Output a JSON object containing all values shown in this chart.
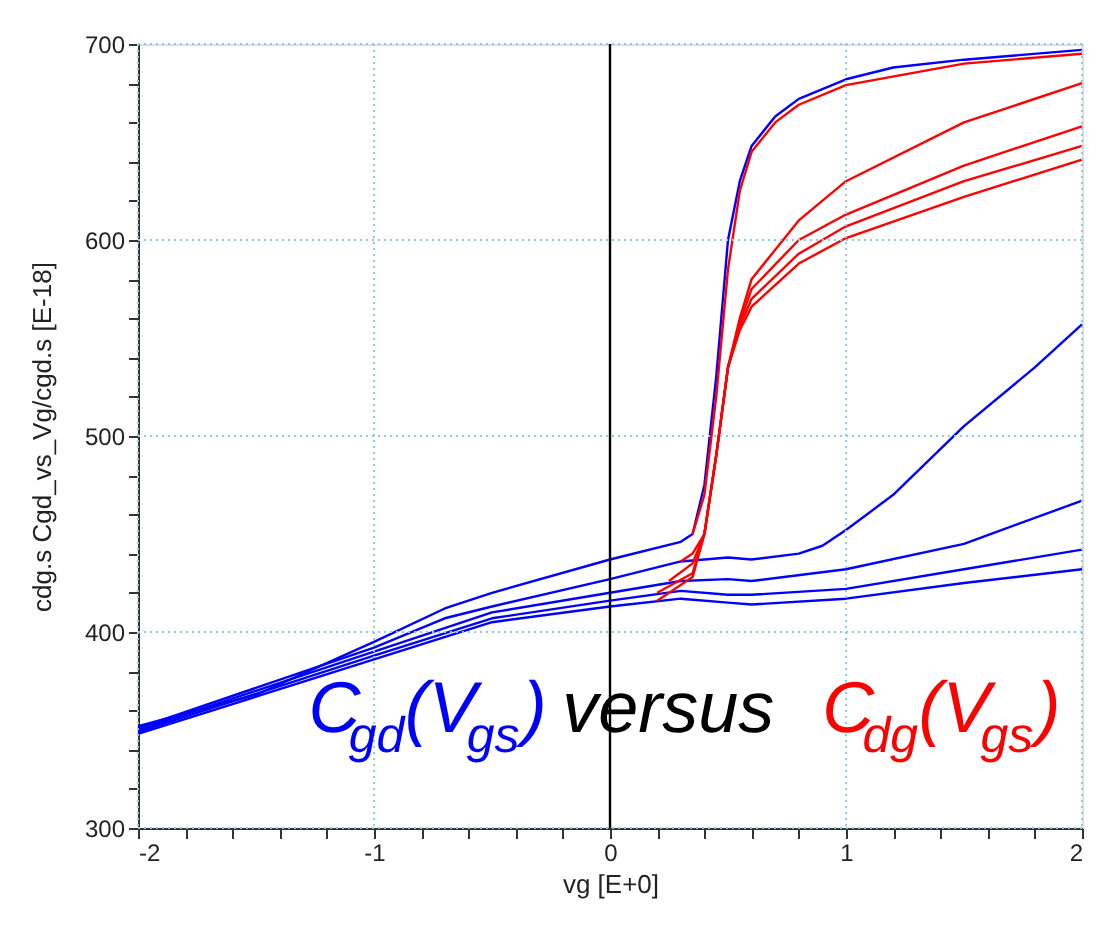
{
  "chart_data": {
    "type": "line",
    "xlabel": "vg  [E+0]",
    "ylabel": "cdg.s   Cgd_vs_Vg/cgd.s   [E-18]",
    "xlim": [
      -2,
      2
    ],
    "ylim": [
      300,
      700
    ],
    "xticks": [
      -2,
      {
        "value": -1.8,
        "label": null
      },
      {
        "value": -1.6,
        "label": null
      },
      {
        "value": -1.4,
        "label": null
      },
      {
        "value": -1.2,
        "label": null
      },
      -1,
      {
        "value": -0.8,
        "label": null
      },
      {
        "value": -0.6,
        "label": null
      },
      {
        "value": -0.4,
        "label": null
      },
      {
        "value": -0.2,
        "label": null
      },
      0,
      {
        "value": 0.2,
        "label": null
      },
      {
        "value": 0.4,
        "label": null
      },
      {
        "value": 0.6,
        "label": null
      },
      {
        "value": 0.8,
        "label": null
      },
      1,
      {
        "value": 1.2,
        "label": null
      },
      {
        "value": 1.4,
        "label": null
      },
      {
        "value": 1.6,
        "label": null
      },
      {
        "value": 1.8,
        "label": null
      },
      2
    ],
    "yticks": [
      300,
      {
        "value": 320,
        "label": null
      },
      {
        "value": 340,
        "label": null
      },
      {
        "value": 360,
        "label": null
      },
      {
        "value": 380,
        "label": null
      },
      400,
      {
        "value": 420,
        "label": null
      },
      {
        "value": 440,
        "label": null
      },
      {
        "value": 460,
        "label": null
      },
      {
        "value": 480,
        "label": null
      },
      500,
      {
        "value": 520,
        "label": null
      },
      {
        "value": 540,
        "label": null
      },
      {
        "value": 560,
        "label": null
      },
      {
        "value": 580,
        "label": null
      },
      600,
      {
        "value": 620,
        "label": null
      },
      {
        "value": 640,
        "label": null
      },
      {
        "value": 660,
        "label": null
      },
      {
        "value": 680,
        "label": null
      },
      700
    ],
    "grid": true,
    "legend": false,
    "line_style": "solid",
    "marker": "none",
    "ref_lines": [
      {
        "axis": "x",
        "value": 0,
        "color": "#000000",
        "line_style": "solid"
      }
    ],
    "annotations": [
      "C$_{gd}$(V$_{gs}$)",
      "versus",
      "C$_{dg}$(V$_{gs}$)"
    ],
    "series": [
      {
        "color": "#0000ff",
        "x": [
          -2,
          -1.5,
          -1,
          -0.7,
          -0.5,
          0,
          0.3,
          0.35,
          0.4,
          0.45,
          0.5,
          0.55,
          0.6,
          0.7,
          0.8,
          1.0,
          1.2,
          1.5,
          2
        ],
        "values": [
          352,
          368,
          395,
          412,
          420,
          437,
          446,
          450,
          475,
          530,
          600,
          630,
          648,
          663,
          672,
          682,
          688,
          692,
          697
        ]
      },
      {
        "color": "#0000ff",
        "x": [
          -2,
          -1,
          -0.7,
          -0.5,
          0,
          0.3,
          0.5,
          0.6,
          0.8,
          0.9,
          1.0,
          1.2,
          1.5,
          1.8,
          2
        ],
        "values": [
          351,
          392,
          407,
          413,
          427,
          436,
          438,
          437,
          440,
          444,
          452,
          470,
          505,
          535,
          557
        ]
      },
      {
        "color": "#0000ff",
        "x": [
          -2,
          -1,
          -0.5,
          0,
          0.3,
          0.5,
          0.6,
          1.0,
          1.5,
          2
        ],
        "values": [
          350,
          390,
          410,
          420,
          426,
          427,
          426,
          432,
          445,
          467
        ]
      },
      {
        "color": "#0000ff",
        "x": [
          -2,
          -1,
          -0.5,
          0,
          0.3,
          0.5,
          0.6,
          1.0,
          1.5,
          2
        ],
        "values": [
          349,
          388,
          407,
          416,
          421,
          419,
          419,
          422,
          432,
          442
        ]
      },
      {
        "color": "#0000ff",
        "x": [
          -2,
          -1,
          -0.5,
          0,
          0.3,
          0.5,
          0.6,
          1.0,
          1.5,
          2
        ],
        "values": [
          348,
          386,
          405,
          413,
          417,
          415,
          414,
          417,
          425,
          432
        ]
      },
      {
        "color": "#ff0000",
        "x": [
          0.35,
          0.4,
          0.45,
          0.5,
          0.55,
          0.6,
          0.7,
          0.8,
          1.0,
          1.5,
          2
        ],
        "values": [
          450,
          470,
          520,
          585,
          625,
          645,
          660,
          669,
          679,
          690,
          695
        ]
      },
      {
        "color": "#ff0000",
        "x": [
          0.3,
          0.35,
          0.4,
          0.45,
          0.5,
          0.55,
          0.6,
          0.8,
          1.0,
          1.5,
          2
        ],
        "values": [
          436,
          440,
          450,
          490,
          535,
          560,
          580,
          610,
          630,
          660,
          680
        ]
      },
      {
        "color": "#ff0000",
        "x": [
          0.25,
          0.35,
          0.4,
          0.45,
          0.5,
          0.55,
          0.6,
          0.8,
          1.0,
          1.5,
          2
        ],
        "values": [
          426,
          435,
          450,
          490,
          535,
          558,
          575,
          600,
          613,
          638,
          658
        ]
      },
      {
        "color": "#ff0000",
        "x": [
          0.2,
          0.35,
          0.4,
          0.45,
          0.5,
          0.55,
          0.6,
          0.8,
          1.0,
          1.5,
          2
        ],
        "values": [
          420,
          430,
          450,
          490,
          535,
          556,
          570,
          593,
          607,
          630,
          648
        ]
      },
      {
        "color": "#ff0000",
        "x": [
          0.2,
          0.35,
          0.4,
          0.45,
          0.5,
          0.55,
          0.6,
          0.8,
          1.0,
          1.5,
          2
        ],
        "values": [
          416,
          428,
          450,
          490,
          535,
          554,
          566,
          588,
          601,
          622,
          641
        ]
      }
    ]
  }
}
